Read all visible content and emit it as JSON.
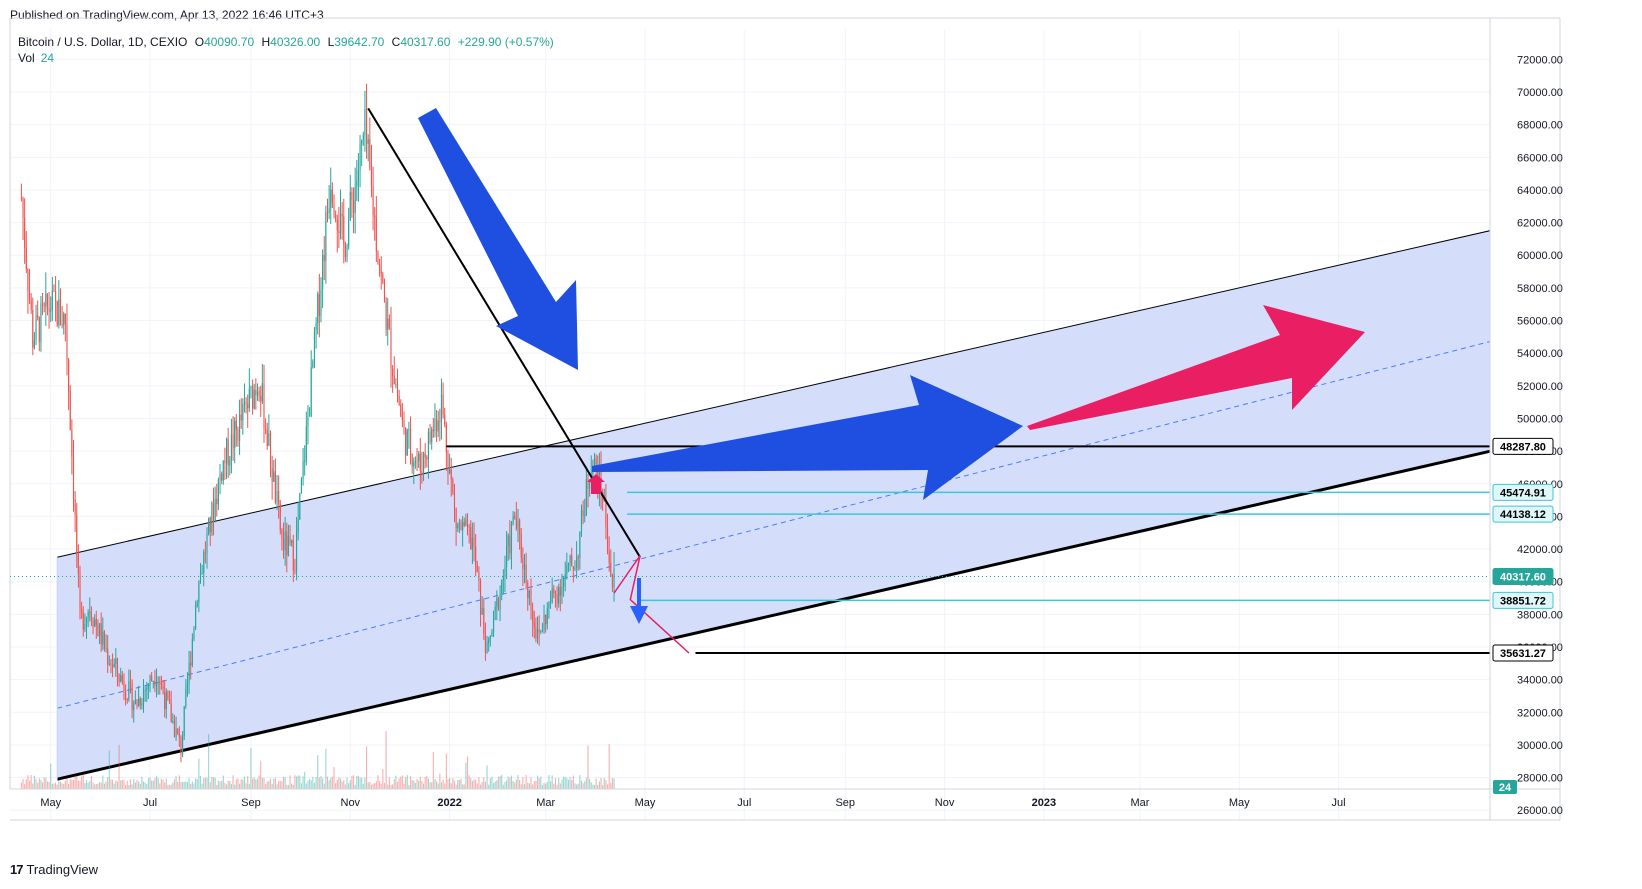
{
  "header": {
    "published": "Published on TradingView.com, Apr 13, 2022 16:46 UTC+3"
  },
  "legend": {
    "symbol": "Bitcoin / U.S. Dollar, 1D, CEXIO",
    "open_label": "O",
    "open": "40090.70",
    "high_label": "H",
    "high": "40326.00",
    "low_label": "L",
    "low": "39642.70",
    "close_label": "C",
    "close": "40317.60",
    "change": "+229.90 (+0.57%)",
    "vol_label": "Vol",
    "vol_value": "24"
  },
  "footer": {
    "brand": "TradingView",
    "logo_glyph": "17"
  },
  "colors": {
    "up": "#26a69a",
    "down": "#ef5350",
    "channel_fill": "#d2dcfb",
    "arrow_blue": "#1f4fe0",
    "arrow_pink": "#e91e63",
    "level_cyan": "#40c4d8",
    "last_price": "#26a69a"
  },
  "chart_data": {
    "type": "candlestick",
    "y_axis_ticks": [
      "72000.00",
      "70000.00",
      "68000.00",
      "66000.00",
      "64000.00",
      "62000.00",
      "60000.00",
      "58000.00",
      "56000.00",
      "54000.00",
      "52000.00",
      "50000.00",
      "48000.00",
      "46000.00",
      "44000.00",
      "42000.00",
      "40000.00",
      "38000.00",
      "36000.00",
      "34000.00",
      "32000.00",
      "30000.00",
      "28000.00",
      "26000.00"
    ],
    "x_axis_ticks": [
      "May",
      "Jul",
      "Sep",
      "Nov",
      "2022",
      "Mar",
      "May",
      "Jul",
      "Sep",
      "Nov",
      "2023",
      "Mar",
      "May",
      "Jul"
    ],
    "ylim": [
      25400,
      73800
    ],
    "price_labels": [
      {
        "value": "48287.80",
        "style": "black"
      },
      {
        "value": "45474.91",
        "style": "cyan"
      },
      {
        "value": "44138.12",
        "style": "cyan"
      },
      {
        "value": "40317.60",
        "style": "last"
      },
      {
        "value": "38851.72",
        "style": "cyan"
      },
      {
        "value": "35631.27",
        "style": "black"
      }
    ],
    "volume_label": "24",
    "price_anchors": [
      {
        "date": "2021-04-13",
        "price": 63500
      },
      {
        "date": "2021-04-20",
        "price": 55000
      },
      {
        "date": "2021-05-01",
        "price": 57000
      },
      {
        "date": "2021-05-10",
        "price": 56000
      },
      {
        "date": "2021-05-13",
        "price": 50000
      },
      {
        "date": "2021-05-19",
        "price": 37500
      },
      {
        "date": "2021-05-25",
        "price": 38500
      },
      {
        "date": "2021-06-05",
        "price": 35500
      },
      {
        "date": "2021-06-22",
        "price": 32500
      },
      {
        "date": "2021-07-05",
        "price": 34500
      },
      {
        "date": "2021-07-20",
        "price": 29800
      },
      {
        "date": "2021-07-30",
        "price": 39500
      },
      {
        "date": "2021-08-14",
        "price": 47000
      },
      {
        "date": "2021-09-06",
        "price": 52500
      },
      {
        "date": "2021-09-20",
        "price": 42500
      },
      {
        "date": "2021-09-28",
        "price": 41500
      },
      {
        "date": "2021-10-20",
        "price": 65000
      },
      {
        "date": "2021-10-28",
        "price": 60500
      },
      {
        "date": "2021-11-10",
        "price": 67500
      },
      {
        "date": "2021-11-20",
        "price": 58500
      },
      {
        "date": "2021-11-26",
        "price": 54000
      },
      {
        "date": "2021-12-04",
        "price": 49000
      },
      {
        "date": "2021-12-14",
        "price": 47000
      },
      {
        "date": "2021-12-27",
        "price": 51000
      },
      {
        "date": "2022-01-05",
        "price": 43500
      },
      {
        "date": "2022-01-15",
        "price": 42500
      },
      {
        "date": "2022-01-24",
        "price": 35500
      },
      {
        "date": "2022-02-10",
        "price": 44000
      },
      {
        "date": "2022-02-24",
        "price": 36500
      },
      {
        "date": "2022-03-05",
        "price": 39000
      },
      {
        "date": "2022-03-20",
        "price": 41500
      },
      {
        "date": "2022-03-29",
        "price": 47500
      },
      {
        "date": "2022-04-05",
        "price": 45500
      },
      {
        "date": "2022-04-11",
        "price": 39600
      },
      {
        "date": "2022-04-12",
        "price": 40317.6
      }
    ],
    "drawings": {
      "channel": {
        "x_start": "2021-05-05",
        "x_end": "2023-10-15",
        "lower_start": 27900,
        "lower_end": 48287.8,
        "upper_start": 41500,
        "upper_end": 61800
      },
      "horizontal_lines": [
        {
          "price": 48287.8,
          "from": "2021-12-30",
          "color": "black"
        },
        {
          "price": 45474.91,
          "from": "2022-04-20",
          "color": "cyan"
        },
        {
          "price": 44138.12,
          "from": "2022-04-20",
          "color": "cyan"
        },
        {
          "price": 38851.72,
          "from": "2022-04-28",
          "color": "cyan"
        },
        {
          "price": 35631.27,
          "from": "2022-06-01",
          "color": "black"
        }
      ],
      "trendline": {
        "from": {
          "date": "2021-11-12",
          "price": 69000
        },
        "to": {
          "date": "2022-04-28",
          "price": 41500
        }
      },
      "projection_path": [
        {
          "date": "2022-04-12",
          "price": 39300
        },
        {
          "date": "2022-04-28",
          "price": 41600
        },
        {
          "date": "2022-04-22",
          "price": 38900
        },
        {
          "date": "2022-05-28",
          "price": 35631
        }
      ]
    }
  }
}
